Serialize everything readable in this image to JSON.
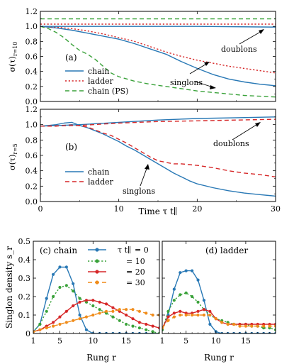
{
  "colors": {
    "chain": "#2878b5",
    "ladder": "#d62728",
    "ps": "#3aa23a",
    "r0": "#2878b5",
    "r10": "#3aa23a",
    "r20": "#d62728",
    "r30": "#f08c1a",
    "axis": "#000000"
  },
  "chart_data": [
    {
      "id": "panel-a",
      "type": "line",
      "panel_label": "(a)",
      "ylabel": "σ(τ)_{r=10}/σ(0)_{r=10}",
      "xlim": [
        0,
        30
      ],
      "ylim": [
        0,
        1.2
      ],
      "xticks": [
        0,
        10,
        20,
        30
      ],
      "yticks": [
        0.0,
        0.2,
        0.4,
        0.6,
        0.8,
        1.0,
        1.2
      ],
      "ytick_labels": [
        "0.0",
        "0.2",
        "0.4",
        "0.6",
        "0.8",
        "1.0",
        "1.2"
      ],
      "legend": [
        "chain",
        "ladder",
        "chain (PS)"
      ],
      "annotations": [
        "doublons",
        "singlons"
      ],
      "series": [
        {
          "name": "chain",
          "group": "singlons",
          "style": "solid",
          "color": "chain",
          "x": [
            0,
            2,
            4,
            6,
            8,
            10,
            12,
            14,
            16,
            18,
            20,
            22,
            24,
            26,
            28,
            30
          ],
          "y": [
            1.0,
            0.98,
            0.95,
            0.91,
            0.87,
            0.83,
            0.77,
            0.7,
            0.63,
            0.53,
            0.44,
            0.36,
            0.3,
            0.26,
            0.23,
            0.21
          ]
        },
        {
          "name": "ladder",
          "group": "singlons",
          "style": "dotted",
          "color": "ladder",
          "x": [
            0,
            2,
            4,
            6,
            8,
            10,
            12,
            14,
            16,
            18,
            20,
            22,
            24,
            26,
            28,
            30
          ],
          "y": [
            1.0,
            0.99,
            0.97,
            0.94,
            0.9,
            0.85,
            0.8,
            0.73,
            0.66,
            0.6,
            0.55,
            0.51,
            0.47,
            0.44,
            0.41,
            0.38
          ]
        },
        {
          "name": "chain (PS)",
          "group": "singlons",
          "style": "dashed",
          "color": "ps",
          "x": [
            0,
            1,
            2,
            3,
            4,
            5,
            6,
            7,
            8,
            9,
            10,
            12,
            14,
            16,
            18,
            20,
            22,
            24,
            26,
            28,
            30
          ],
          "y": [
            1.0,
            0.97,
            0.92,
            0.85,
            0.76,
            0.68,
            0.63,
            0.56,
            0.47,
            0.38,
            0.33,
            0.27,
            0.23,
            0.2,
            0.17,
            0.14,
            0.12,
            0.1,
            0.08,
            0.07,
            0.06
          ]
        },
        {
          "name": "chain",
          "group": "doublons",
          "style": "solid",
          "color": "chain",
          "x": [
            0,
            10,
            20,
            30
          ],
          "y": [
            1.0,
            1.0,
            1.0,
            0.99
          ]
        },
        {
          "name": "ladder",
          "group": "doublons",
          "style": "dotted",
          "color": "ladder",
          "x": [
            0,
            10,
            20,
            30
          ],
          "y": [
            1.03,
            1.03,
            1.03,
            1.03
          ]
        },
        {
          "name": "chain (PS)",
          "group": "doublons",
          "style": "dashed",
          "color": "ps",
          "x": [
            0,
            10,
            20,
            30
          ],
          "y": [
            1.1,
            1.1,
            1.1,
            1.1
          ]
        }
      ]
    },
    {
      "id": "panel-b",
      "type": "line",
      "panel_label": "(b)",
      "ylabel": "σ(τ)_{r=5}/σ(0)_{r=5}",
      "xlabel": "Time τ t∥",
      "xlim": [
        0,
        30
      ],
      "ylim": [
        0,
        1.2
      ],
      "xticks": [
        0,
        10,
        20,
        30
      ],
      "yticks": [
        0.0,
        0.2,
        0.4,
        0.6,
        0.8,
        1.0,
        1.2
      ],
      "ytick_labels": [
        "0.0",
        "0.2",
        "0.4",
        "0.6",
        "0.8",
        "1.0",
        "1.2"
      ],
      "legend": [
        "chain",
        "ladder"
      ],
      "annotations": [
        "doublons",
        "singlons"
      ],
      "series": [
        {
          "name": "chain",
          "group": "singlons",
          "style": "solid",
          "color": "chain",
          "x": [
            0,
            1,
            2,
            3,
            4,
            5,
            6,
            7,
            8,
            9,
            10,
            11,
            12,
            13,
            14,
            15,
            16,
            17,
            18,
            19,
            20,
            22,
            24,
            26,
            28,
            30
          ],
          "y": [
            0.98,
            0.99,
            1.0,
            1.02,
            1.03,
            0.99,
            0.96,
            0.92,
            0.88,
            0.83,
            0.78,
            0.72,
            0.67,
            0.61,
            0.55,
            0.49,
            0.43,
            0.37,
            0.32,
            0.27,
            0.23,
            0.18,
            0.14,
            0.11,
            0.09,
            0.07
          ]
        },
        {
          "name": "ladder",
          "group": "singlons",
          "style": "dashed",
          "color": "ladder",
          "x": [
            0,
            2,
            4,
            6,
            8,
            9,
            10,
            11,
            12,
            13,
            14,
            15,
            16,
            17,
            18,
            19,
            20,
            22,
            24,
            26,
            28,
            30
          ],
          "y": [
            0.98,
            0.98,
            1.0,
            0.97,
            0.89,
            0.86,
            0.81,
            0.76,
            0.7,
            0.64,
            0.58,
            0.53,
            0.51,
            0.49,
            0.49,
            0.48,
            0.47,
            0.44,
            0.4,
            0.37,
            0.35,
            0.32
          ]
        },
        {
          "name": "chain",
          "group": "doublons",
          "style": "solid",
          "color": "chain",
          "x": [
            0,
            5,
            10,
            15,
            20,
            25,
            30
          ],
          "y": [
            0.98,
            1.0,
            1.03,
            1.06,
            1.08,
            1.09,
            1.1
          ]
        },
        {
          "name": "ladder",
          "group": "doublons",
          "style": "dashed",
          "color": "ladder",
          "x": [
            0,
            5,
            10,
            15,
            20,
            25,
            30
          ],
          "y": [
            0.98,
            0.99,
            1.02,
            1.04,
            1.05,
            1.06,
            1.07
          ]
        }
      ]
    },
    {
      "id": "panel-c",
      "type": "line",
      "panel_label": "(c) chain",
      "ylabel": "Singlon density s_r",
      "xlabel": "Rung r",
      "xlim": [
        1,
        20
      ],
      "ylim": [
        0,
        0.5
      ],
      "xticks": [
        1,
        5,
        10,
        15
      ],
      "yticks": [
        0,
        0.1,
        0.2,
        0.3,
        0.4,
        0.5
      ],
      "ytick_labels": [
        "0",
        "0.1",
        "0.2",
        "0.3",
        "0.4",
        "0.5"
      ],
      "legend_title": "τ t∥",
      "legend": [
        "= 0",
        "= 10",
        "= 20",
        "= 30"
      ],
      "series": [
        {
          "name": "τ t∥ = 0",
          "style": "solid",
          "color": "r0",
          "x": [
            1,
            2,
            3,
            4,
            5,
            6,
            7,
            8,
            9,
            10,
            11,
            12,
            13,
            14,
            15,
            16,
            17,
            18,
            19,
            20
          ],
          "y": [
            0.01,
            0.05,
            0.19,
            0.32,
            0.36,
            0.36,
            0.27,
            0.1,
            0.02,
            0.0,
            0.0,
            0.0,
            0.0,
            0.0,
            0.0,
            0.0,
            0.0,
            0.0,
            0.0,
            0.0
          ]
        },
        {
          "name": "τ t∥ = 10",
          "style": "dotted",
          "color": "r10",
          "x": [
            1,
            2,
            3,
            4,
            5,
            6,
            7,
            8,
            9,
            10,
            11,
            12,
            13,
            14,
            15,
            16,
            17,
            18,
            19,
            20
          ],
          "y": [
            0.01,
            0.05,
            0.12,
            0.2,
            0.25,
            0.26,
            0.23,
            0.19,
            0.17,
            0.15,
            0.13,
            0.11,
            0.09,
            0.07,
            0.05,
            0.04,
            0.03,
            0.02,
            0.01,
            0.0
          ]
        },
        {
          "name": "τ t∥ = 20",
          "style": "solid",
          "color": "r20",
          "x": [
            1,
            2,
            3,
            4,
            5,
            6,
            7,
            8,
            9,
            10,
            11,
            12,
            13,
            14,
            15,
            16,
            17,
            18,
            19,
            20
          ],
          "y": [
            0.01,
            0.02,
            0.04,
            0.06,
            0.09,
            0.12,
            0.15,
            0.17,
            0.18,
            0.18,
            0.17,
            0.16,
            0.14,
            0.12,
            0.1,
            0.08,
            0.06,
            0.05,
            0.04,
            0.03
          ]
        },
        {
          "name": "τ t∥ = 30",
          "style": "dashed",
          "color": "r30",
          "x": [
            1,
            2,
            3,
            4,
            5,
            6,
            7,
            8,
            9,
            10,
            11,
            12,
            13,
            14,
            15,
            16,
            17,
            18,
            19,
            20
          ],
          "y": [
            0.01,
            0.02,
            0.03,
            0.04,
            0.05,
            0.06,
            0.07,
            0.08,
            0.09,
            0.1,
            0.11,
            0.12,
            0.12,
            0.13,
            0.13,
            0.13,
            0.12,
            0.11,
            0.1,
            0.1
          ]
        }
      ]
    },
    {
      "id": "panel-d",
      "type": "line",
      "panel_label": "(d) ladder",
      "xlabel": "Rung r",
      "xlim": [
        1,
        20
      ],
      "ylim": [
        0,
        0.5
      ],
      "xticks": [
        1,
        5,
        10,
        15
      ],
      "yticks": [
        0,
        0.1,
        0.2,
        0.3,
        0.4,
        0.5
      ],
      "series": [
        {
          "name": "τ t∥ = 0",
          "style": "solid",
          "color": "r0",
          "x": [
            1,
            2,
            3,
            4,
            5,
            6,
            7,
            8,
            9,
            10,
            11,
            12,
            13,
            14,
            15,
            16,
            17,
            18,
            19,
            20
          ],
          "y": [
            0.02,
            0.1,
            0.24,
            0.33,
            0.34,
            0.34,
            0.29,
            0.18,
            0.05,
            0.01,
            0.0,
            0.0,
            0.0,
            0.0,
            0.0,
            0.0,
            0.0,
            0.0,
            0.0,
            0.0
          ]
        },
        {
          "name": "τ t∥ = 10",
          "style": "dotted",
          "color": "r10",
          "x": [
            1,
            2,
            3,
            4,
            5,
            6,
            7,
            8,
            9,
            10,
            11,
            12,
            13,
            14,
            15,
            16,
            17,
            18,
            19,
            20
          ],
          "y": [
            0.02,
            0.12,
            0.18,
            0.21,
            0.22,
            0.2,
            0.17,
            0.13,
            0.1,
            0.08,
            0.07,
            0.06,
            0.05,
            0.05,
            0.05,
            0.04,
            0.04,
            0.03,
            0.03,
            0.02
          ]
        },
        {
          "name": "τ t∥ = 20",
          "style": "solid",
          "color": "r20",
          "x": [
            1,
            2,
            3,
            4,
            5,
            6,
            7,
            8,
            9,
            10,
            11,
            12,
            13,
            14,
            15,
            16,
            17,
            18,
            19,
            20
          ],
          "y": [
            0.03,
            0.09,
            0.11,
            0.12,
            0.11,
            0.11,
            0.12,
            0.13,
            0.12,
            0.08,
            0.06,
            0.05,
            0.05,
            0.05,
            0.05,
            0.05,
            0.05,
            0.05,
            0.05,
            0.05
          ]
        },
        {
          "name": "τ t∥ = 30",
          "style": "dashed",
          "color": "r30",
          "x": [
            1,
            2,
            3,
            4,
            5,
            6,
            7,
            8,
            9,
            10,
            11,
            12,
            13,
            14,
            15,
            16,
            17,
            18,
            19,
            20
          ],
          "y": [
            0.03,
            0.07,
            0.09,
            0.1,
            0.1,
            0.1,
            0.1,
            0.1,
            0.1,
            0.08,
            0.06,
            0.05,
            0.05,
            0.04,
            0.04,
            0.04,
            0.04,
            0.04,
            0.04,
            0.04
          ]
        }
      ]
    }
  ]
}
